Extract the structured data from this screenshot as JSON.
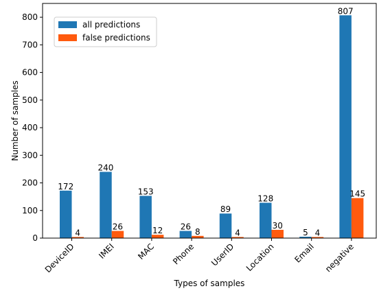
{
  "chart_data": {
    "type": "bar",
    "categories": [
      "DeviceID",
      "IMEI",
      "MAC",
      "Phone",
      "UserID",
      "Location",
      "Email",
      "negative"
    ],
    "series": [
      {
        "name": "all predictions",
        "values": [
          172,
          240,
          153,
          26,
          89,
          128,
          5,
          807
        ],
        "color": "#1f77b4"
      },
      {
        "name": "false predictions",
        "values": [
          4,
          26,
          12,
          8,
          4,
          30,
          4,
          145
        ],
        "color": "#ff5a0e"
      }
    ],
    "title": "",
    "xlabel": "Types of samples",
    "ylabel": "Number of samples",
    "ylim": [
      0,
      850
    ],
    "yticks": [
      0,
      100,
      200,
      300,
      400,
      500,
      600,
      700,
      800
    ],
    "grid": false,
    "legend_position": "top-left"
  }
}
